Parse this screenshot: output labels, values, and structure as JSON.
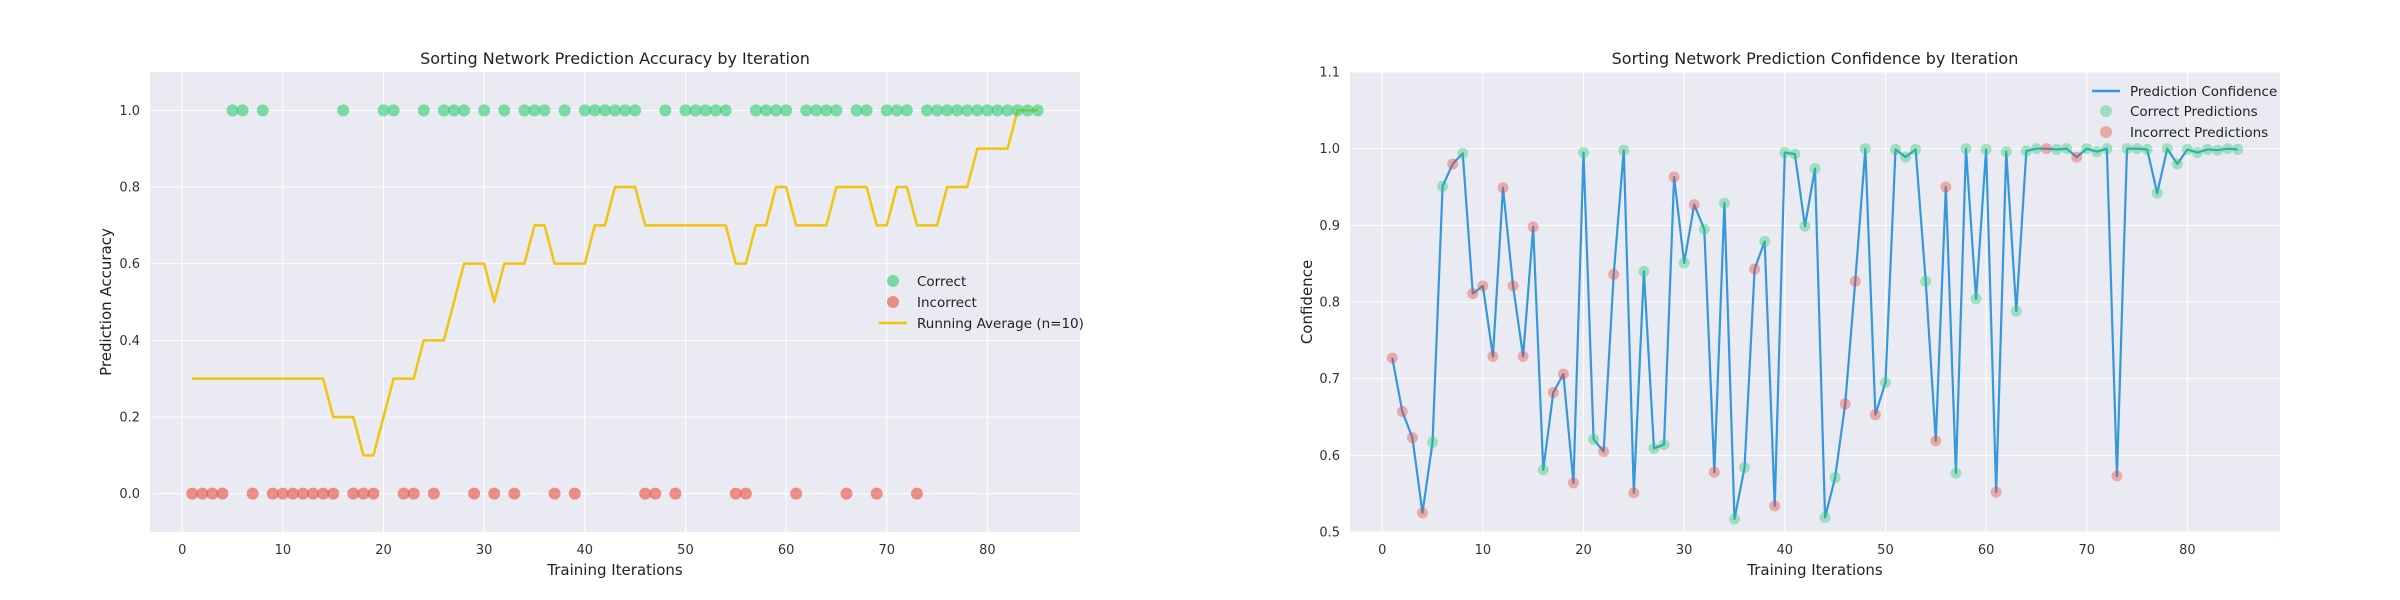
{
  "chart_data": [
    {
      "type": "scatter",
      "title": "Sorting Network Prediction Accuracy by Iteration",
      "xlabel": "Training Iterations",
      "ylabel": "Prediction Accuracy",
      "xlim": [
        -3.2,
        89.2
      ],
      "ylim": [
        -0.1,
        1.1
      ],
      "x_ticks": [
        0,
        10,
        20,
        30,
        40,
        50,
        60,
        70,
        80
      ],
      "y_ticks": [
        0.0,
        0.2,
        0.4,
        0.6,
        0.8,
        1.0
      ],
      "grid": true,
      "legend_position": "center-right",
      "series": [
        {
          "name": "Correct",
          "kind": "scatter",
          "color": "#2ecc71",
          "x": [
            5,
            6,
            8,
            16,
            20,
            21,
            24,
            26,
            27,
            28,
            30,
            32,
            34,
            35,
            36,
            38,
            40,
            41,
            42,
            43,
            44,
            45,
            48,
            50,
            51,
            52,
            53,
            54,
            57,
            58,
            59,
            60,
            62,
            63,
            64,
            65,
            67,
            68,
            70,
            71,
            72,
            74,
            75,
            76,
            77,
            78,
            79,
            80,
            81,
            82,
            83,
            84,
            85
          ],
          "y": 1.0
        },
        {
          "name": "Incorrect",
          "kind": "scatter",
          "color": "#e74c3c",
          "x": [
            1,
            2,
            3,
            4,
            7,
            9,
            10,
            11,
            12,
            13,
            14,
            15,
            17,
            18,
            19,
            22,
            23,
            25,
            29,
            31,
            33,
            37,
            39,
            46,
            47,
            49,
            55,
            56,
            61,
            66,
            69,
            73
          ],
          "y": 0.0
        },
        {
          "name": "Running Average (n=10)",
          "kind": "line",
          "color": "#f1c40f",
          "x": [
            1,
            2,
            3,
            4,
            5,
            6,
            7,
            8,
            9,
            10,
            11,
            12,
            13,
            14,
            15,
            16,
            17,
            18,
            19,
            20,
            21,
            22,
            23,
            24,
            25,
            26,
            27,
            28,
            29,
            30,
            31,
            32,
            33,
            34,
            35,
            36,
            37,
            38,
            39,
            40,
            41,
            42,
            43,
            44,
            45,
            46,
            47,
            48,
            49,
            50,
            51,
            52,
            53,
            54,
            55,
            56,
            57,
            58,
            59,
            60,
            61,
            62,
            63,
            64,
            65,
            66,
            67,
            68,
            69,
            70,
            71,
            72,
            73,
            74,
            75,
            76,
            77,
            78,
            79,
            80,
            81,
            82,
            83,
            84,
            85
          ],
          "y": [
            0.3,
            0.3,
            0.3,
            0.3,
            0.3,
            0.3,
            0.3,
            0.3,
            0.3,
            0.3,
            0.3,
            0.3,
            0.3,
            0.3,
            0.2,
            0.2,
            0.2,
            0.1,
            0.1,
            0.2,
            0.3,
            0.3,
            0.3,
            0.4,
            0.4,
            0.4,
            0.5,
            0.6,
            0.6,
            0.6,
            0.5,
            0.6,
            0.6,
            0.6,
            0.7,
            0.7,
            0.6,
            0.6,
            0.6,
            0.6,
            0.7,
            0.7,
            0.8,
            0.8,
            0.8,
            0.7,
            0.7,
            0.7,
            0.7,
            0.7,
            0.7,
            0.7,
            0.7,
            0.7,
            0.6,
            0.6,
            0.7,
            0.7,
            0.8,
            0.8,
            0.7,
            0.7,
            0.7,
            0.7,
            0.8,
            0.8,
            0.8,
            0.8,
            0.7,
            0.7,
            0.8,
            0.8,
            0.7,
            0.7,
            0.7,
            0.8,
            0.8,
            0.8,
            0.9,
            0.9,
            0.9,
            0.9,
            1.0,
            1.0,
            1.0
          ]
        }
      ]
    },
    {
      "type": "line",
      "title": "Sorting Network Prediction Confidence by Iteration",
      "xlabel": "Training Iterations",
      "ylabel": "Confidence",
      "xlim": [
        -3.2,
        89.2
      ],
      "ylim": [
        0.5,
        1.1
      ],
      "x_ticks": [
        0,
        10,
        20,
        30,
        40,
        50,
        60,
        70,
        80
      ],
      "y_ticks": [
        0.5,
        0.6,
        0.7,
        0.8,
        0.9,
        1.0,
        1.1
      ],
      "grid": true,
      "legend_position": "top-right",
      "line_color": "#3498db",
      "correct_color": "#2ecc71",
      "incorrect_color": "#e74c3c",
      "legend": [
        "Prediction Confidence",
        "Correct Predictions",
        "Incorrect Predictions"
      ],
      "x": [
        1,
        2,
        3,
        4,
        5,
        6,
        7,
        8,
        9,
        10,
        11,
        12,
        13,
        14,
        15,
        16,
        17,
        18,
        19,
        20,
        21,
        22,
        23,
        24,
        25,
        26,
        27,
        28,
        29,
        30,
        31,
        32,
        33,
        34,
        35,
        36,
        37,
        38,
        39,
        40,
        41,
        42,
        43,
        44,
        45,
        46,
        47,
        48,
        49,
        50,
        51,
        52,
        53,
        54,
        55,
        56,
        57,
        58,
        59,
        60,
        61,
        62,
        63,
        64,
        65,
        66,
        67,
        68,
        69,
        70,
        71,
        72,
        73,
        74,
        75,
        76,
        77,
        78,
        79,
        80,
        81,
        82,
        83,
        84,
        85
      ],
      "y": [
        0.727,
        0.657,
        0.623,
        0.525,
        0.617,
        0.951,
        0.98,
        0.994,
        0.811,
        0.821,
        0.729,
        0.949,
        0.821,
        0.729,
        0.898,
        0.581,
        0.682,
        0.706,
        0.564,
        0.995,
        0.621,
        0.605,
        0.836,
        0.998,
        0.551,
        0.84,
        0.609,
        0.614,
        0.963,
        0.851,
        0.927,
        0.895,
        0.578,
        0.929,
        0.517,
        0.584,
        0.843,
        0.879,
        0.534,
        0.995,
        0.993,
        0.899,
        0.974,
        0.519,
        0.571,
        0.667,
        0.827,
        1.0,
        0.653,
        0.695,
        0.999,
        0.989,
        0.999,
        0.827,
        0.619,
        0.95,
        0.577,
        1.0,
        0.804,
        0.999,
        0.552,
        0.996,
        0.788,
        0.997,
        1.0,
        1.0,
        0.999,
        1.0,
        0.989,
        1.0,
        0.996,
        1.0,
        0.573,
        1.0,
        1.0,
        0.999,
        0.942,
        1.0,
        0.98,
        0.999,
        0.995,
        0.999,
        0.998,
        1.0,
        0.999
      ],
      "correct": [
        0,
        0,
        0,
        0,
        1,
        1,
        0,
        1,
        0,
        0,
        0,
        0,
        0,
        0,
        0,
        1,
        0,
        0,
        0,
        1,
        1,
        0,
        0,
        1,
        0,
        1,
        1,
        1,
        0,
        1,
        0,
        1,
        0,
        1,
        1,
        1,
        0,
        1,
        0,
        1,
        1,
        1,
        1,
        1,
        1,
        0,
        0,
        1,
        0,
        1,
        1,
        1,
        1,
        1,
        0,
        0,
        1,
        1,
        1,
        1,
        0,
        1,
        1,
        1,
        1,
        0,
        1,
        1,
        0,
        1,
        1,
        1,
        0,
        1,
        1,
        1,
        1,
        1,
        1,
        1,
        1,
        1,
        1,
        1,
        1
      ]
    }
  ]
}
